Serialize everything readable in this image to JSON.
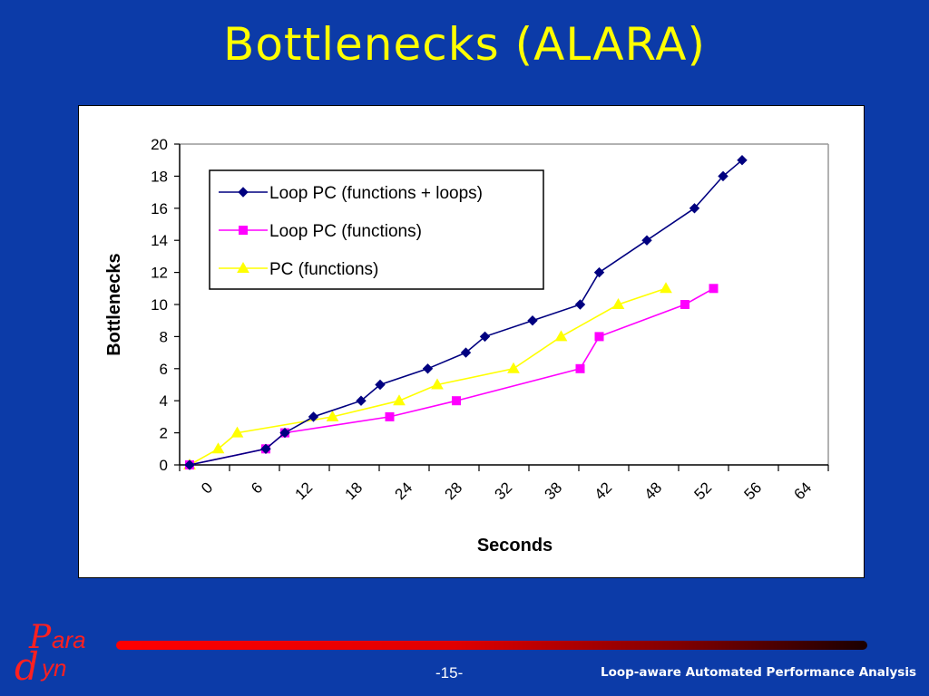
{
  "title": "Bottlenecks (ALARA)",
  "footer": {
    "page_number": "-15-",
    "caption": "Loop-aware Automated Performance Analysis",
    "logo_text_top": "ara",
    "logo_text_bottom": "yn",
    "logo_letter_p": "P",
    "logo_letter_d": "d"
  },
  "colors": {
    "background": "#0c3ba8",
    "title": "#ffff00",
    "series_loops": "#000080",
    "series_functions": "#ff00ff",
    "series_pc": "#ffff00"
  },
  "chart_data": {
    "type": "line",
    "xlabel": "Seconds",
    "ylabel": "Bottlenecks",
    "ylim": [
      0,
      20
    ],
    "yticks": [
      0,
      2,
      4,
      6,
      8,
      10,
      12,
      14,
      16,
      18,
      20
    ],
    "xticks": [
      "0",
      "6",
      "12",
      "18",
      "24",
      "28",
      "32",
      "38",
      "42",
      "48",
      "52",
      "56",
      "64"
    ],
    "xlim": [
      0,
      66
    ],
    "legend_position": "top-left",
    "grid": false,
    "series": [
      {
        "name": "Loop PC (functions + loops)",
        "marker": "diamond",
        "color": "#000080",
        "points": [
          [
            0,
            0
          ],
          [
            8,
            1
          ],
          [
            10,
            2
          ],
          [
            13,
            3
          ],
          [
            18,
            4
          ],
          [
            20,
            5
          ],
          [
            25,
            6
          ],
          [
            29,
            7
          ],
          [
            31,
            8
          ],
          [
            36,
            9
          ],
          [
            41,
            10
          ],
          [
            43,
            12
          ],
          [
            48,
            14
          ],
          [
            53,
            16
          ],
          [
            56,
            18
          ],
          [
            58,
            19
          ]
        ]
      },
      {
        "name": "Loop PC (functions)",
        "marker": "square",
        "color": "#ff00ff",
        "points": [
          [
            0,
            0
          ],
          [
            8,
            1
          ],
          [
            10,
            2
          ],
          [
            21,
            3
          ],
          [
            28,
            4
          ],
          [
            41,
            6
          ],
          [
            43,
            8
          ],
          [
            52,
            10
          ],
          [
            55,
            11
          ]
        ]
      },
      {
        "name": "PC (functions)",
        "marker": "triangle",
        "color": "#ffff00",
        "points": [
          [
            0,
            0
          ],
          [
            3,
            1
          ],
          [
            5,
            2
          ],
          [
            15,
            3
          ],
          [
            22,
            4
          ],
          [
            26,
            5
          ],
          [
            34,
            6
          ],
          [
            39,
            8
          ],
          [
            45,
            10
          ],
          [
            50,
            11
          ]
        ]
      }
    ]
  }
}
